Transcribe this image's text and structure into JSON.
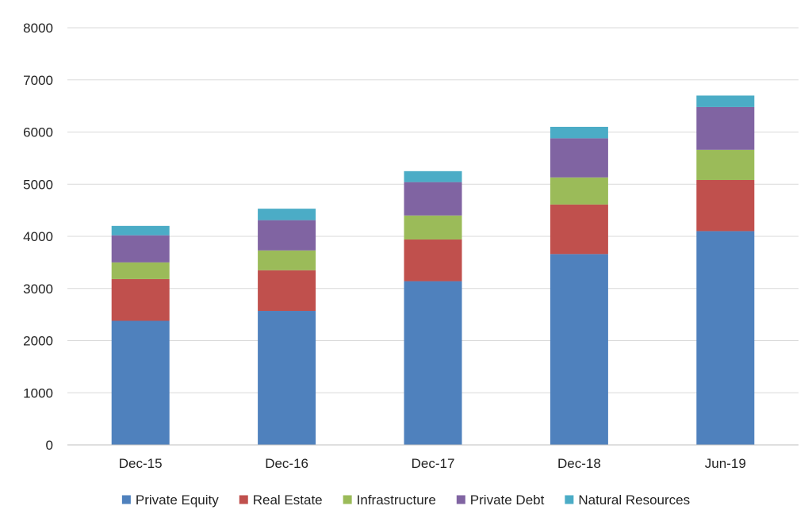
{
  "chart_data": {
    "type": "bar",
    "stacked": true,
    "categories": [
      "Dec-15",
      "Dec-16",
      "Dec-17",
      "Dec-18",
      "Jun-19"
    ],
    "series": [
      {
        "name": "Private Equity",
        "color": "#4F81BD",
        "values": [
          2380,
          2570,
          3140,
          3660,
          4100
        ]
      },
      {
        "name": "Real Estate",
        "color": "#C0504D",
        "values": [
          800,
          780,
          800,
          950,
          980
        ]
      },
      {
        "name": "Infrastructure",
        "color": "#9BBB59",
        "values": [
          320,
          380,
          460,
          520,
          580
        ]
      },
      {
        "name": "Private Debt",
        "color": "#8064A2",
        "values": [
          520,
          580,
          640,
          750,
          820
        ]
      },
      {
        "name": "Natural Resources",
        "color": "#4BACC6",
        "values": [
          180,
          220,
          210,
          220,
          220
        ]
      }
    ],
    "ylim": [
      0,
      8000
    ],
    "yticks": [
      0,
      1000,
      2000,
      3000,
      4000,
      5000,
      6000,
      7000,
      8000
    ],
    "grid": true,
    "legend_position": "bottom"
  }
}
